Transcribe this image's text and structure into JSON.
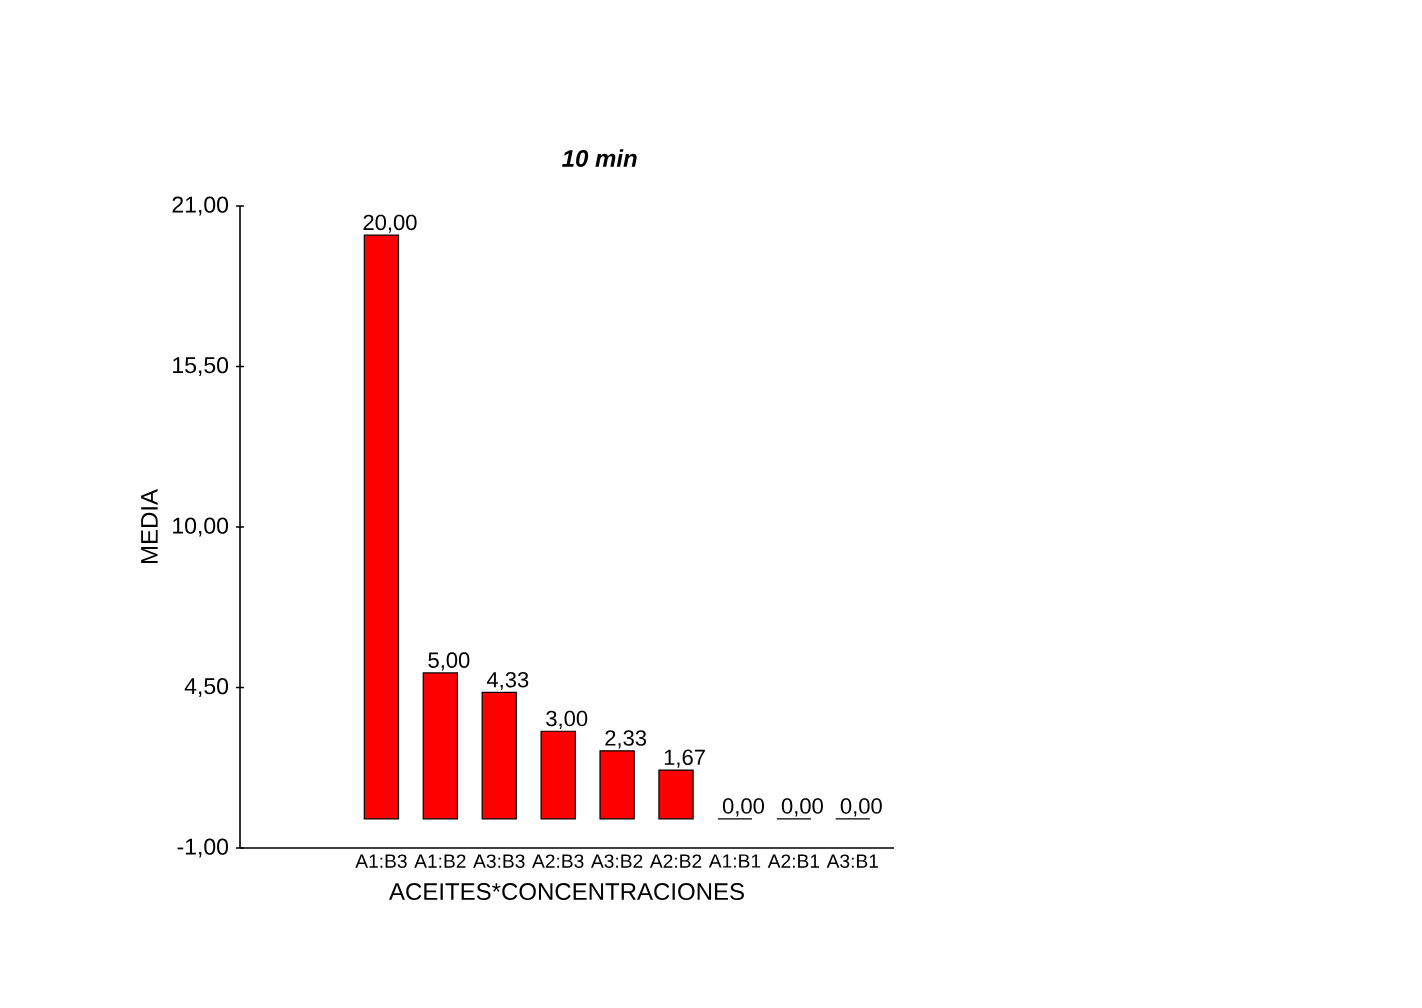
{
  "chart_data": {
    "type": "bar",
    "title": "**10 min**",
    "xlabel": "ACEITES*CONCENTRACIONES",
    "ylabel": "MEDIA",
    "categories": [
      "A1:B3",
      "A1:B2",
      "A3:B3",
      "A2:B3",
      "A3:B2",
      "A2:B2",
      "A1:B1",
      "A2:B1",
      "A3:B1"
    ],
    "values": [
      20,
      5,
      4.33,
      3,
      2.33,
      1.67,
      0,
      0,
      0
    ],
    "value_labels": [
      "20,00",
      "5,00",
      "4,33",
      "3,00",
      "2,33",
      "1,67",
      "0,00",
      "0,00",
      "0,00"
    ],
    "color": "#ff0000",
    "ylim": [
      -1,
      21
    ],
    "yticks": [
      {
        "value": -1,
        "label": "-1,00"
      },
      {
        "value": 4.5,
        "label": "4,50"
      },
      {
        "value": 10,
        "label": "10,00"
      },
      {
        "value": 15.5,
        "label": "15,50"
      },
      {
        "value": 21,
        "label": "21,00"
      }
    ],
    "grid": false
  }
}
